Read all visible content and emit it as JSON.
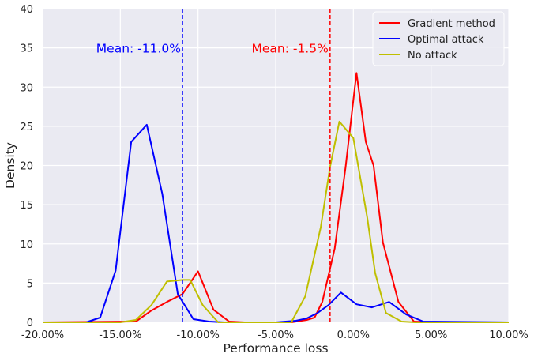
{
  "chart_data": {
    "type": "line",
    "title": "",
    "xlabel": "Performance loss",
    "ylabel": "Density",
    "xlim": [
      -20,
      10
    ],
    "ylim": [
      0,
      40
    ],
    "grid": true,
    "legend_position": "top-right",
    "x_ticks": [
      -20,
      -15,
      -10,
      -5,
      0,
      5,
      10
    ],
    "x_tick_labels": [
      "-20.00%",
      "-15.00%",
      "-10.00%",
      "-5.00%",
      "0.00%",
      "5.00%",
      "10.00%"
    ],
    "y_ticks": [
      0,
      5,
      10,
      15,
      20,
      25,
      30,
      35,
      40
    ],
    "y_tick_labels": [
      "0",
      "5",
      "10",
      "15",
      "20",
      "25",
      "30",
      "35",
      "40"
    ],
    "background_color": "#eaeaf2",
    "grid_color": "#ffffff",
    "series": [
      {
        "name": "Gradient method",
        "color": "#ff0000",
        "x": [
          -20,
          -14,
          -13,
          -12,
          -11,
          -10,
          -9,
          -8,
          -7,
          -5,
          -4,
          -3,
          -2.5,
          -2,
          -1.2,
          -0.5,
          0.2,
          0.8,
          1.3,
          1.9,
          2.9,
          3.9,
          5,
          10
        ],
        "y": [
          0,
          0.1,
          1.5,
          2.6,
          3.6,
          6.5,
          1.6,
          0.1,
          0,
          0,
          0,
          0.3,
          0.6,
          2.6,
          9.4,
          19.8,
          31.8,
          23,
          20,
          10.2,
          2.6,
          0.1,
          0,
          0
        ]
      },
      {
        "name": "Optimal attack",
        "color": "#0000ff",
        "x": [
          -20,
          -17.2,
          -16.3,
          -15.3,
          -14.3,
          -13.3,
          -12.3,
          -11.3,
          -10.3,
          -9.3,
          -8.3,
          -5,
          -3.7,
          -3,
          -2.3,
          -1.6,
          -0.8,
          0.2,
          1.2,
          2.3,
          3.4,
          4.5,
          10
        ],
        "y": [
          0,
          0,
          0.6,
          6.6,
          23,
          25.2,
          16.4,
          3.6,
          0.4,
          0.1,
          0,
          0,
          0.2,
          0.5,
          1.2,
          2.2,
          3.8,
          2.3,
          1.9,
          2.6,
          1,
          0.1,
          0
        ]
      },
      {
        "name": "No attack",
        "color": "#bfbf00",
        "x": [
          -20,
          -15,
          -14,
          -13,
          -12,
          -11,
          -10.5,
          -9.7,
          -8.7,
          -4,
          -3.1,
          -2.1,
          -1.5,
          -0.9,
          0,
          0.9,
          1.4,
          2.1,
          3.1,
          4,
          10
        ],
        "y": [
          0,
          0,
          0.3,
          2.2,
          5.2,
          5.4,
          5.4,
          2.2,
          0,
          0,
          3.3,
          12.1,
          19.8,
          25.6,
          23.5,
          13.3,
          6.3,
          1.2,
          0.1,
          0,
          0
        ]
      }
    ],
    "mean_lines": [
      {
        "x": -11.0,
        "color": "#0000ff",
        "label": "Mean: -11.0%"
      },
      {
        "x": -1.5,
        "color": "#ff0000",
        "label": "Mean: -1.5%"
      }
    ]
  }
}
